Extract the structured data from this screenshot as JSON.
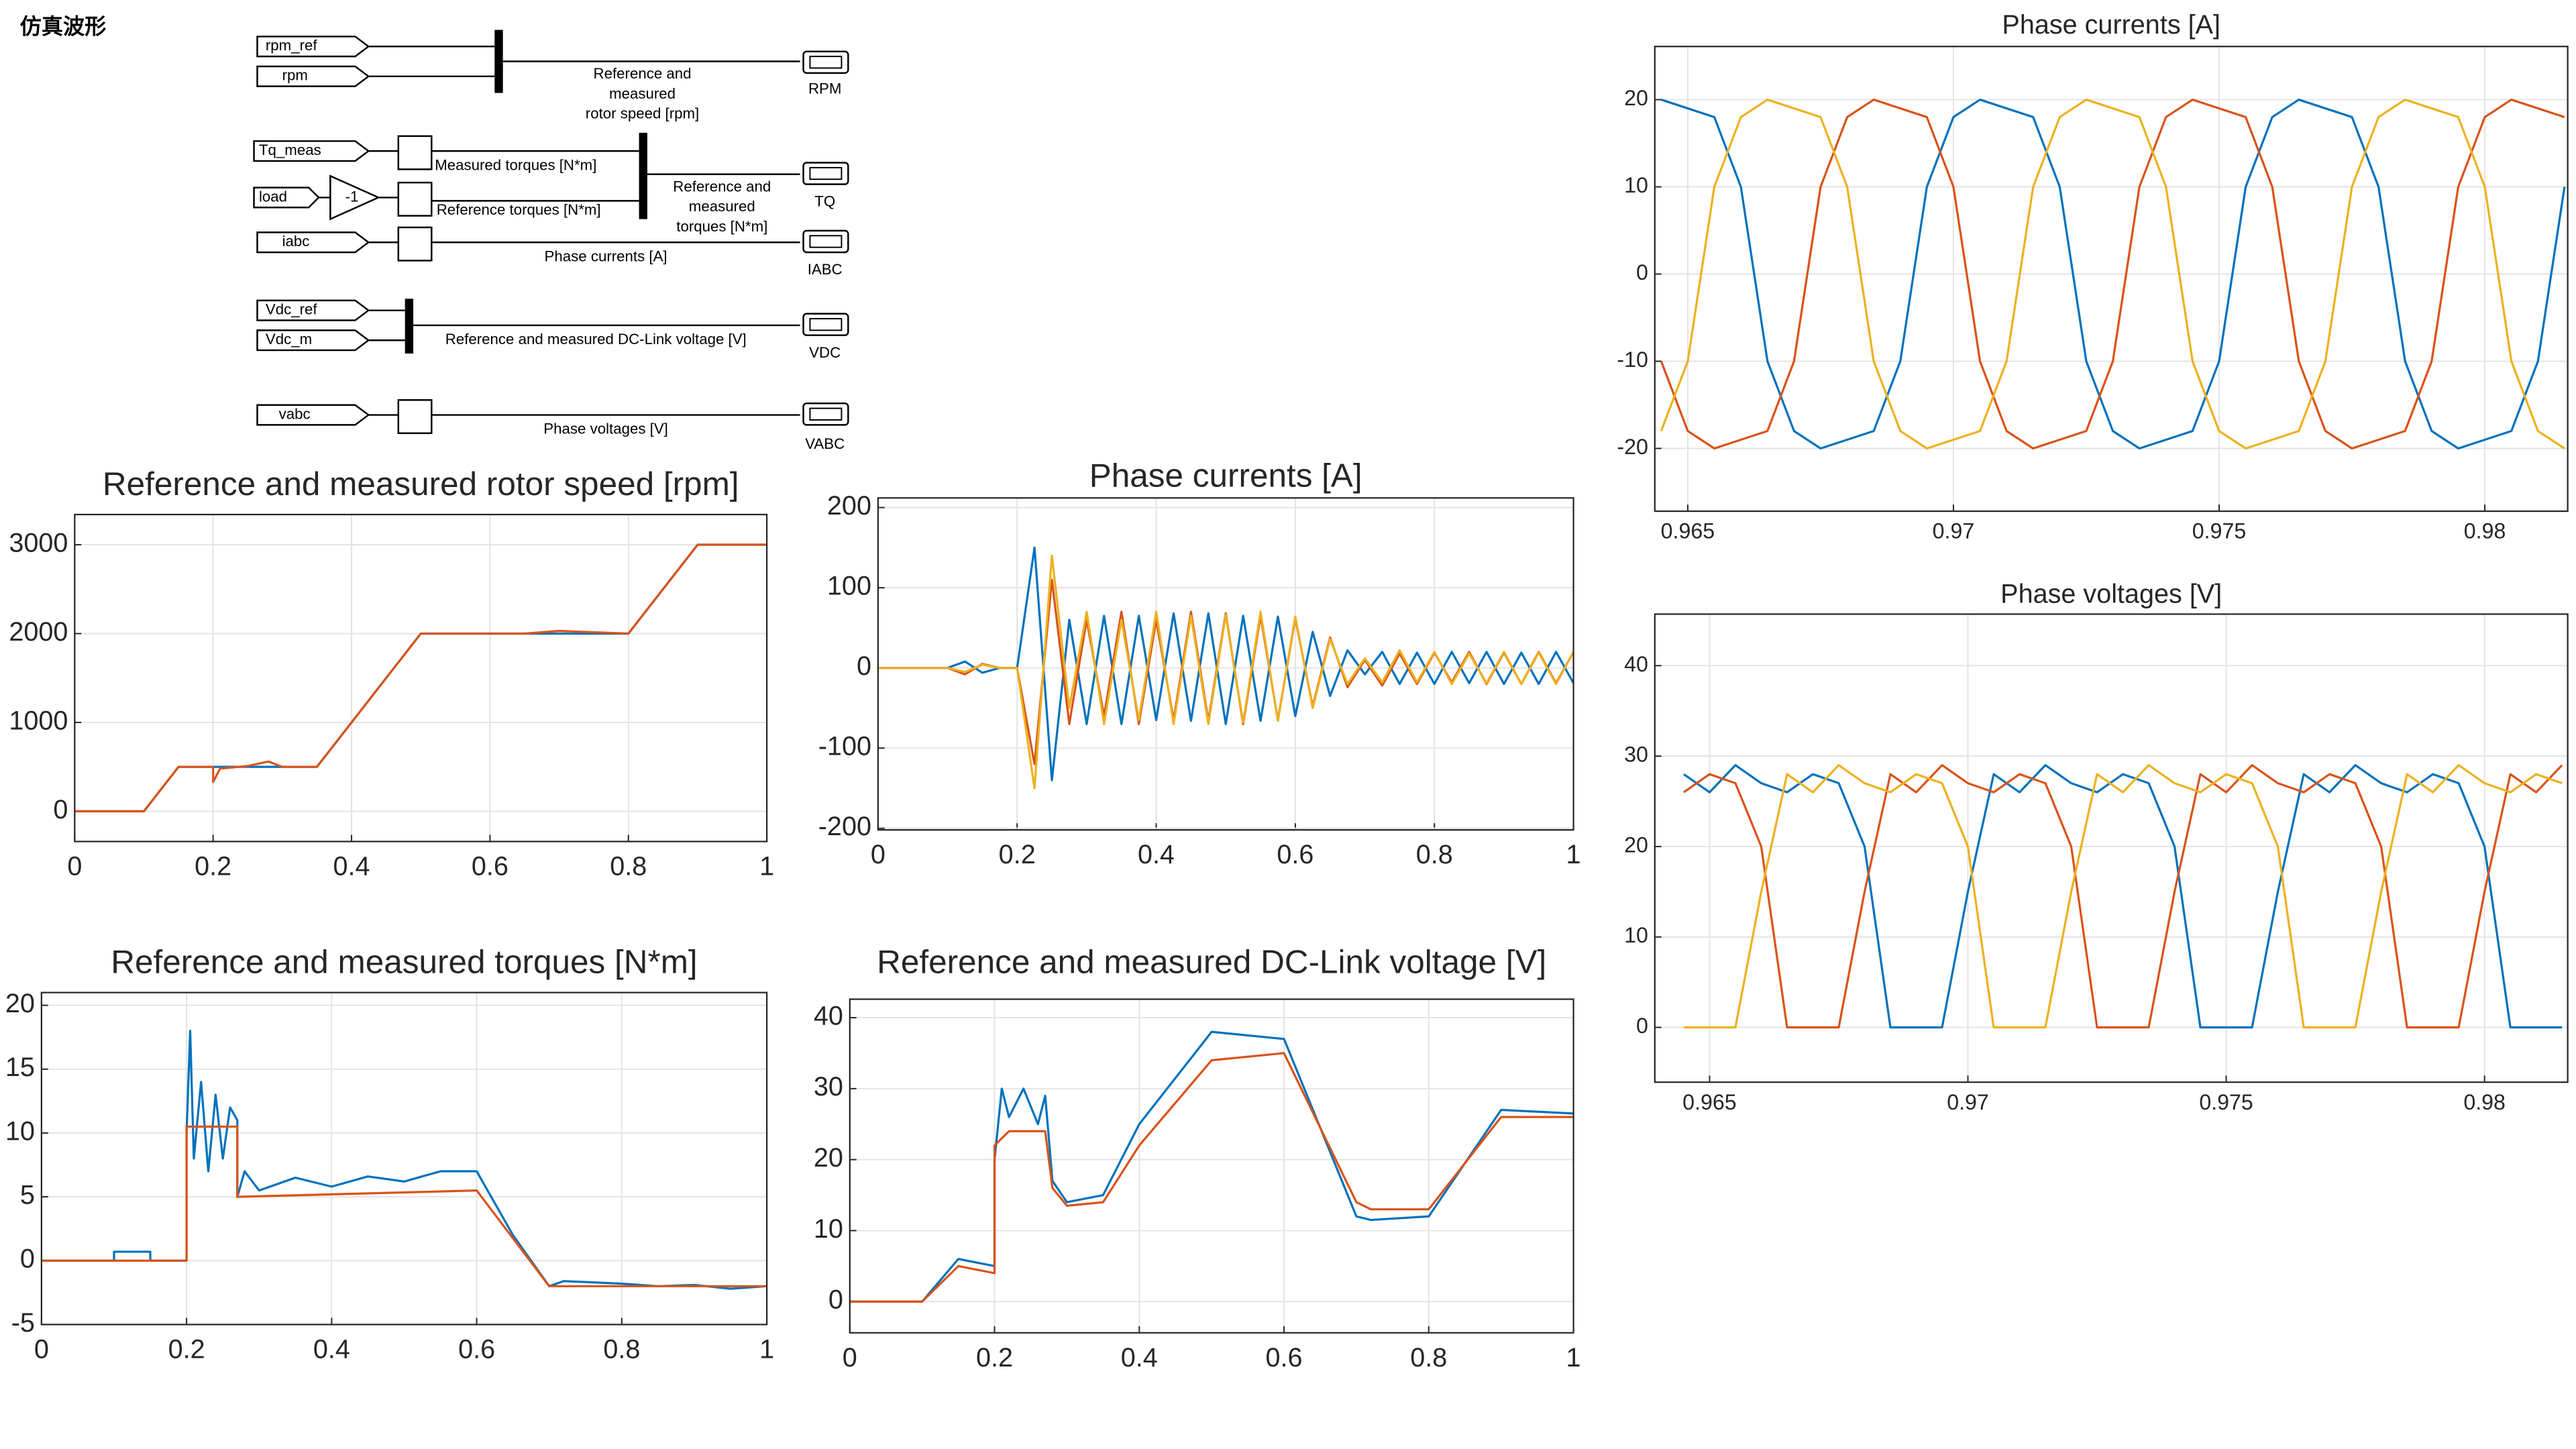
{
  "header": {
    "title": "仿真波形"
  },
  "diagram": {
    "inputs": [
      "rpm_ref",
      "rpm",
      "Tq_meas",
      "load",
      "iabc",
      "Vdc_ref",
      "Vdc_m",
      "vabc"
    ],
    "gain": "-1",
    "signals": {
      "speed": [
        "Reference and",
        "measured",
        "rotor speed [rpm]"
      ],
      "measured_torque": "Measured torques [N*m]",
      "reference_torque": "Reference torques [N*m]",
      "torques": [
        "Reference and",
        "measured",
        "torques [N*m]"
      ],
      "currents": "Phase currents [A]",
      "dc_link": "Reference and measured DC-Link voltage [V]",
      "voltages": "Phase voltages [V]"
    },
    "outputs": [
      "RPM",
      "TQ",
      "IABC",
      "VDC",
      "VABC"
    ]
  },
  "chart_data": [
    {
      "type": "line",
      "title": "Reference and measured rotor speed [rpm]",
      "xlim": [
        0,
        1
      ],
      "xticks": [
        0,
        0.2,
        0.4,
        0.6,
        0.8,
        1
      ],
      "ylim": [
        -340,
        3340
      ],
      "yticks": [
        0,
        1000,
        2000,
        3000
      ],
      "grid": true,
      "series": [
        {
          "color": "#0072bd",
          "x": [
            0,
            0.1,
            0.15,
            0.35,
            0.5,
            0.8,
            0.9,
            1
          ],
          "values": [
            0,
            0,
            500,
            500,
            2000,
            2000,
            3000,
            3000
          ]
        },
        {
          "color": "#d95319",
          "x": [
            0,
            0.1,
            0.15,
            0.2,
            0.2,
            0.21,
            0.25,
            0.28,
            0.3,
            0.35,
            0.5,
            0.65,
            0.7,
            0.8,
            0.9,
            1
          ],
          "values": [
            0,
            0,
            500,
            500,
            330,
            480,
            510,
            560,
            500,
            500,
            2000,
            2000,
            2030,
            2000,
            3000,
            3000
          ]
        }
      ]
    },
    {
      "type": "line",
      "title": "Phase currents [A]",
      "xlim": [
        0,
        1
      ],
      "xticks": [
        0,
        0.2,
        0.4,
        0.6,
        0.8,
        1
      ],
      "ylim": [
        -202,
        212
      ],
      "yticks": [
        -200,
        -100,
        0,
        100,
        200
      ],
      "grid": true,
      "x": [
        0,
        0.025,
        0.05,
        0.075,
        0.1,
        0.125,
        0.15,
        0.175,
        0.2,
        0.225,
        0.25,
        0.275,
        0.3,
        0.325,
        0.35,
        0.375,
        0.4,
        0.425,
        0.45,
        0.475,
        0.5,
        0.525,
        0.55,
        0.575,
        0.6,
        0.625,
        0.65,
        0.675,
        0.7,
        0.725,
        0.75,
        0.775,
        0.8,
        0.825,
        0.85,
        0.875,
        0.9,
        0.925,
        0.95,
        0.975,
        1
      ],
      "series": [
        {
          "color": "#0072bd",
          "values": [
            0,
            0,
            0,
            0,
            0,
            8,
            -6,
            0,
            0,
            150,
            -140,
            60,
            -70,
            65,
            -70,
            65,
            -65,
            68,
            -66,
            68,
            -70,
            65,
            -66,
            64,
            -60,
            45,
            -35,
            22,
            -8,
            20,
            -20,
            19,
            -20,
            20,
            -19,
            20,
            -20,
            19,
            -20,
            20,
            -19
          ]
        },
        {
          "color": "#d95319",
          "values": [
            0,
            0,
            0,
            0,
            0,
            -8,
            5,
            0,
            0,
            -120,
            110,
            -70,
            60,
            -60,
            70,
            -70,
            60,
            -65,
            70,
            -66,
            68,
            -70,
            65,
            -65,
            62,
            -48,
            38,
            -24,
            10,
            -22,
            18,
            -20,
            19,
            -18,
            20,
            -20,
            19,
            -20,
            20,
            -19,
            20
          ]
        },
        {
          "color": "#edb120",
          "values": [
            0,
            0,
            0,
            0,
            0,
            -5,
            4,
            0,
            0,
            -150,
            140,
            -50,
            70,
            -70,
            60,
            -65,
            70,
            -70,
            65,
            -70,
            66,
            -68,
            70,
            -66,
            64,
            -50,
            36,
            -20,
            12,
            -18,
            22,
            -18,
            20,
            -20,
            18,
            -19,
            20,
            -20,
            19,
            -20,
            20
          ]
        }
      ]
    },
    {
      "type": "line",
      "title": "Reference and measured torques [N*m]",
      "xlim": [
        0,
        1
      ],
      "xticks": [
        0,
        0.2,
        0.4,
        0.6,
        0.8,
        1
      ],
      "ylim": [
        -5,
        21
      ],
      "yticks": [
        -5,
        0,
        5,
        10,
        15,
        20
      ],
      "grid": true,
      "series": [
        {
          "color": "#0072bd",
          "x": [
            0,
            0.1,
            0.1,
            0.15,
            0.15,
            0.2,
            0.2,
            0.205,
            0.21,
            0.22,
            0.23,
            0.24,
            0.25,
            0.26,
            0.27,
            0.27,
            0.28,
            0.3,
            0.35,
            0.4,
            0.45,
            0.5,
            0.55,
            0.6,
            0.65,
            0.7,
            0.72,
            0.8,
            0.85,
            0.9,
            0.95,
            1
          ],
          "values": [
            0,
            0,
            0.7,
            0.7,
            0,
            0,
            10,
            18,
            8,
            14,
            7,
            13,
            8,
            12,
            11,
            5,
            7,
            5.5,
            6.5,
            5.8,
            6.6,
            6.2,
            7,
            7,
            2,
            -2,
            -1.6,
            -1.8,
            -2,
            -1.9,
            -2.2,
            -2
          ]
        },
        {
          "color": "#d95319",
          "x": [
            0,
            0.2,
            0.2,
            0.27,
            0.27,
            0.6,
            0.7,
            1
          ],
          "values": [
            0,
            0,
            10.5,
            10.5,
            5,
            5.5,
            -2,
            -2
          ]
        }
      ]
    },
    {
      "type": "line",
      "title": "Reference and measured DC-Link voltage [V]",
      "xlim": [
        0,
        1
      ],
      "xticks": [
        0,
        0.2,
        0.4,
        0.6,
        0.8,
        1
      ],
      "ylim": [
        -4.4,
        42.6
      ],
      "yticks": [
        0,
        10,
        20,
        30,
        40
      ],
      "grid": true,
      "series": [
        {
          "color": "#0072bd",
          "x": [
            0,
            0.1,
            0.15,
            0.2,
            0.2,
            0.21,
            0.22,
            0.24,
            0.26,
            0.27,
            0.28,
            0.3,
            0.35,
            0.4,
            0.5,
            0.6,
            0.7,
            0.72,
            0.8,
            0.9,
            1
          ],
          "values": [
            0,
            0,
            6,
            5,
            20,
            30,
            26,
            30,
            25,
            29,
            17,
            14,
            15,
            25,
            38,
            37,
            12,
            11.5,
            12,
            27,
            26.5
          ]
        },
        {
          "color": "#d95319",
          "x": [
            0,
            0.1,
            0.15,
            0.2,
            0.2,
            0.22,
            0.27,
            0.28,
            0.3,
            0.35,
            0.4,
            0.5,
            0.6,
            0.7,
            0.72,
            0.8,
            0.9,
            1
          ],
          "values": [
            0,
            0,
            5,
            4,
            22,
            24,
            24,
            16,
            13.5,
            14,
            22,
            34,
            35,
            14,
            13,
            13,
            26,
            26
          ]
        }
      ]
    },
    {
      "type": "line",
      "title": "Phase currents [A]",
      "xlim": [
        0.96438,
        0.98156
      ],
      "xticks": [
        0.965,
        0.97,
        0.975,
        0.98
      ],
      "ylim": [
        -27.2,
        26.1
      ],
      "yticks": [
        -20,
        -10,
        0,
        10,
        20
      ],
      "grid": true,
      "x": [
        0.9645,
        0.965,
        0.9655,
        0.966,
        0.9665,
        0.967,
        0.9675,
        0.968,
        0.9685,
        0.969,
        0.9695,
        0.97,
        0.9705,
        0.971,
        0.9715,
        0.972,
        0.9725,
        0.973,
        0.9735,
        0.974,
        0.9745,
        0.975,
        0.9755,
        0.976,
        0.9765,
        0.977,
        0.9775,
        0.978,
        0.9785,
        0.979,
        0.9795,
        0.98,
        0.9805,
        0.981,
        0.9815
      ],
      "series": [
        {
          "color": "#0072bd",
          "values": [
            20,
            19,
            18,
            10,
            -10,
            -18,
            -20,
            -19,
            -18,
            -10,
            10,
            18,
            20,
            19,
            18,
            10,
            -10,
            -18,
            -20,
            -19,
            -18,
            -10,
            10,
            18,
            20,
            19,
            18,
            10,
            -10,
            -18,
            -20,
            -19,
            -18,
            -10,
            10
          ]
        },
        {
          "color": "#d95319",
          "values": [
            -10,
            -18,
            -20,
            -19,
            -18,
            -10,
            10,
            18,
            20,
            19,
            18,
            10,
            -10,
            -18,
            -20,
            -19,
            -18,
            -10,
            10,
            18,
            20,
            19,
            18,
            10,
            -10,
            -18,
            -20,
            -19,
            -18,
            -10,
            10,
            18,
            20,
            19,
            18
          ]
        },
        {
          "color": "#edb120",
          "values": [
            -18,
            -10,
            10,
            18,
            20,
            19,
            18,
            10,
            -10,
            -18,
            -20,
            -19,
            -18,
            -10,
            10,
            18,
            20,
            19,
            18,
            10,
            -10,
            -18,
            -20,
            -19,
            -18,
            -10,
            10,
            18,
            20,
            19,
            18,
            10,
            -10,
            -18,
            -20
          ]
        }
      ]
    },
    {
      "type": "line",
      "title": "Phase voltages [V]",
      "xlim": [
        0.96394,
        0.98161
      ],
      "xticks": [
        0.965,
        0.97,
        0.975,
        0.98
      ],
      "ylim": [
        -6.06,
        45.7
      ],
      "yticks": [
        0,
        10,
        20,
        30,
        40
      ],
      "grid": true,
      "x": [
        0.9645,
        0.965,
        0.9655,
        0.966,
        0.9665,
        0.967,
        0.9675,
        0.968,
        0.9685,
        0.969,
        0.9695,
        0.97,
        0.9705,
        0.971,
        0.9715,
        0.972,
        0.9725,
        0.973,
        0.9735,
        0.974,
        0.9745,
        0.975,
        0.9755,
        0.976,
        0.9765,
        0.977,
        0.9775,
        0.978,
        0.9785,
        0.979,
        0.9795,
        0.98,
        0.9805,
        0.981,
        0.9815
      ],
      "series": [
        {
          "color": "#0072bd",
          "values": [
            28,
            26,
            29,
            27,
            26,
            28,
            27,
            20,
            0,
            0,
            0,
            15,
            28,
            26,
            29,
            27,
            26,
            28,
            27,
            20,
            0,
            0,
            0,
            15,
            28,
            26,
            29,
            27,
            26,
            28,
            27,
            20,
            0,
            0,
            0
          ]
        },
        {
          "color": "#d95319",
          "values": [
            26,
            28,
            27,
            20,
            0,
            0,
            0,
            15,
            28,
            26,
            29,
            27,
            26,
            28,
            27,
            20,
            0,
            0,
            0,
            15,
            28,
            26,
            29,
            27,
            26,
            28,
            27,
            20,
            0,
            0,
            0,
            15,
            28,
            26,
            29
          ]
        },
        {
          "color": "#edb120",
          "values": [
            0,
            0,
            0,
            15,
            28,
            26,
            29,
            27,
            26,
            28,
            27,
            20,
            0,
            0,
            0,
            15,
            28,
            26,
            29,
            27,
            26,
            28,
            27,
            20,
            0,
            0,
            0,
            15,
            28,
            26,
            29,
            27,
            26,
            28,
            27
          ]
        }
      ]
    }
  ]
}
